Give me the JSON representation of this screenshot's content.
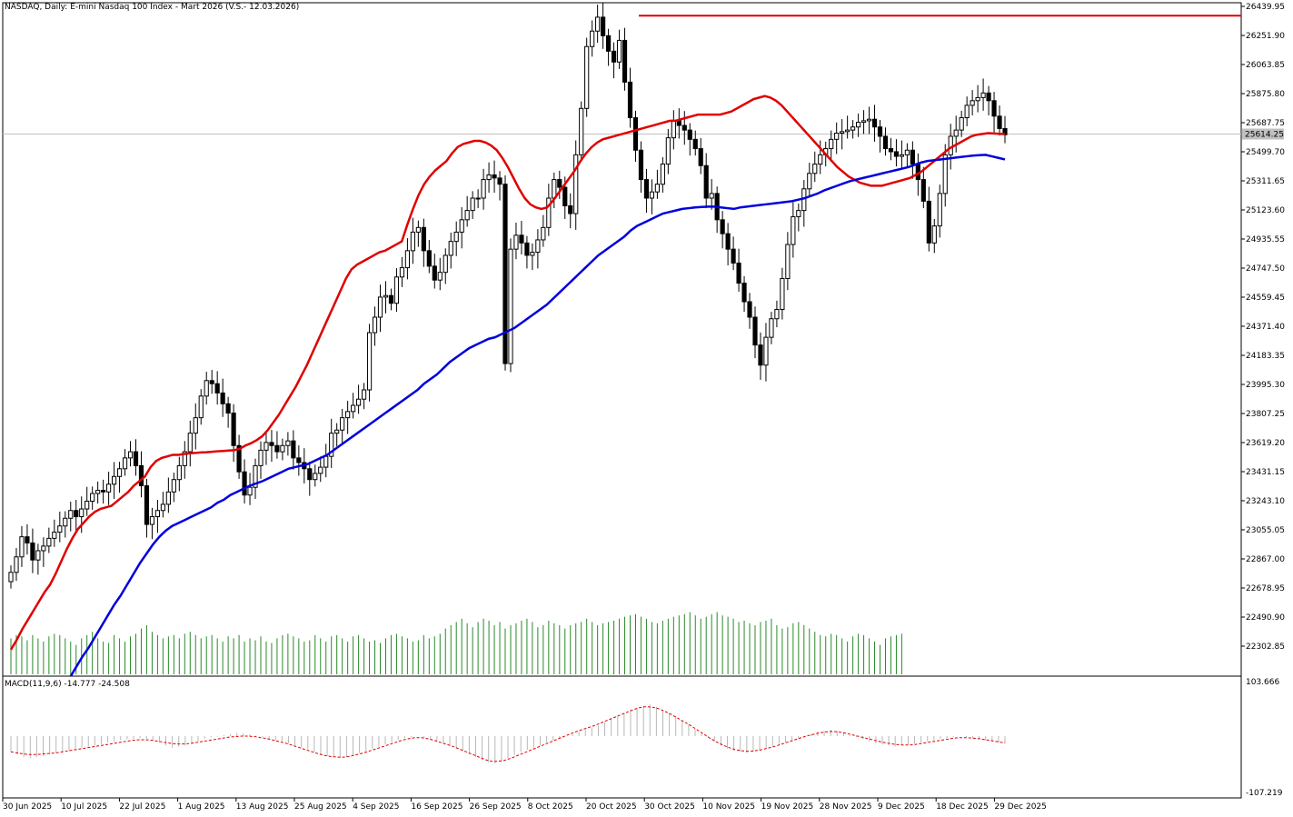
{
  "chart_data": {
    "type": "candlestick",
    "title": "NASDAQ, Daily:  E-mini Nasdaq 100 Index - Mart 2026 (V.S.- 12.03.2026)",
    "price_axis": {
      "ticks": [
        "26439.95",
        "26251.90",
        "26063.85",
        "25875.80",
        "25687.75",
        "25499.70",
        "25311.65",
        "25123.60",
        "24935.55",
        "24747.50",
        "24559.45",
        "24371.40",
        "24183.35",
        "23995.30",
        "23807.25",
        "23619.20",
        "23431.15",
        "23243.10",
        "23055.05",
        "22867.00",
        "22678.95",
        "22490.90",
        "22302.85"
      ],
      "range": [
        22302.85,
        26439.95
      ],
      "current_price": "25614.25",
      "resistance_level": 26380
    },
    "date_labels": [
      "30 Jun 2025",
      "10 Jul 2025",
      "22 Jul 2025",
      "1 Aug 2025",
      "13 Aug 2025",
      "25 Aug 2025",
      "4 Sep 2025",
      "16 Sep 2025",
      "26 Sep 2025",
      "8 Oct 2025",
      "20 Oct 2025",
      "30 Oct 2025",
      "10 Nov 2025",
      "19 Nov 2025",
      "28 Nov 2025",
      "9 Dec 2025",
      "18 Dec 2025",
      "29 Dec 2025"
    ],
    "close_series": [
      22780,
      22880,
      23010,
      22970,
      22860,
      22920,
      22950,
      23000,
      23040,
      23080,
      23130,
      23180,
      23140,
      23190,
      23240,
      23290,
      23310,
      23300,
      23350,
      23400,
      23450,
      23520,
      23560,
      23470,
      23340,
      23090,
      23140,
      23180,
      23220,
      23300,
      23380,
      23470,
      23560,
      23680,
      23780,
      23920,
      24020,
      24000,
      23940,
      23870,
      23810,
      23600,
      23430,
      23280,
      23330,
      23470,
      23570,
      23620,
      23600,
      23560,
      23600,
      23630,
      23520,
      23490,
      23450,
      23380,
      23420,
      23460,
      23530,
      23680,
      23700,
      23780,
      23820,
      23860,
      23900,
      23960,
      24330,
      24430,
      24560,
      24570,
      24520,
      24690,
      24750,
      24860,
      24980,
      25010,
      24860,
      24760,
      24670,
      24720,
      24830,
      24920,
      24980,
      25060,
      25120,
      25200,
      25200,
      25320,
      25350,
      25330,
      25290,
      24130,
      24870,
      24960,
      24910,
      24830,
      24850,
      24930,
      25010,
      25200,
      25320,
      25270,
      25150,
      25100,
      25480,
      25780,
      26180,
      26280,
      26370,
      26250,
      26150,
      26080,
      26220,
      25950,
      25720,
      25510,
      25320,
      25200,
      25240,
      25290,
      25420,
      25590,
      25700,
      25670,
      25640,
      25580,
      25520,
      25410,
      25200,
      25230,
      25060,
      24970,
      24870,
      24780,
      24650,
      24530,
      24430,
      24250,
      24120,
      24300,
      24420,
      24480,
      24680,
      24900,
      25080,
      25120,
      25260,
      25360,
      25420,
      25480,
      25520,
      25580,
      25620,
      25630,
      25640,
      25660,
      25690,
      25700,
      25710,
      25660,
      25600,
      25520,
      25500,
      25470,
      25480,
      25510,
      25420,
      25320,
      25180,
      24910,
      25020,
      25230,
      25480,
      25600,
      25640,
      25720,
      25800,
      25830,
      25850,
      25880,
      25830,
      25730,
      25650,
      25610
    ],
    "ma_red_series": [
      22280,
      22340,
      22410,
      22470,
      22530,
      22590,
      22650,
      22700,
      22770,
      22850,
      22930,
      23000,
      23060,
      23100,
      23140,
      23170,
      23190,
      23200,
      23210,
      23240,
      23270,
      23300,
      23340,
      23370,
      23400,
      23460,
      23500,
      23520,
      23530,
      23540,
      23540,
      23545,
      23550,
      23552,
      23555,
      23557,
      23560,
      23563,
      23565,
      23568,
      23570,
      23580,
      23600,
      23615,
      23635,
      23660,
      23700,
      23750,
      23800,
      23860,
      23920,
      23980,
      24050,
      24120,
      24200,
      24280,
      24360,
      24440,
      24520,
      24600,
      24680,
      24740,
      24770,
      24790,
      24810,
      24830,
      24850,
      24860,
      24880,
      24900,
      24920,
      25030,
      25130,
      25220,
      25290,
      25340,
      25380,
      25410,
      25440,
      25490,
      25530,
      25550,
      25560,
      25570,
      25570,
      25560,
      25540,
      25510,
      25460,
      25400,
      25330,
      25260,
      25200,
      25160,
      25140,
      25130,
      25140,
      25180,
      25230,
      25280,
      25330,
      25380,
      25440,
      25490,
      25530,
      25560,
      25580,
      25590,
      25600,
      25610,
      25620,
      25630,
      25640,
      25650,
      25660,
      25670,
      25680,
      25690,
      25700,
      25700,
      25710,
      25720,
      25730,
      25740,
      25740,
      25740,
      25740,
      25740,
      25750,
      25760,
      25780,
      25800,
      25820,
      25840,
      25850,
      25860,
      25850,
      25830,
      25800,
      25760,
      25720,
      25680,
      25640,
      25600,
      25560,
      25520,
      25480,
      25440,
      25400,
      25370,
      25340,
      25320,
      25300,
      25290,
      25280,
      25280,
      25280,
      25290,
      25300,
      25310,
      25320,
      25330,
      25350,
      25370,
      25400,
      25430,
      25460,
      25490,
      25520,
      25540,
      25560,
      25580,
      25600,
      25610,
      25615,
      25620,
      25618,
      25616,
      25614
    ],
    "ma_blue_series": [
      21500,
      21560,
      21620,
      21690,
      21760,
      21830,
      21890,
      21960,
      22020,
      22090,
      22160,
      22230,
      22290,
      22360,
      22430,
      22500,
      22570,
      22630,
      22700,
      22770,
      22840,
      22900,
      22960,
      23010,
      23050,
      23080,
      23100,
      23120,
      23140,
      23160,
      23180,
      23200,
      23230,
      23250,
      23280,
      23300,
      23320,
      23340,
      23355,
      23370,
      23390,
      23410,
      23430,
      23450,
      23460,
      23470,
      23480,
      23500,
      23520,
      23540,
      23570,
      23600,
      23630,
      23660,
      23690,
      23720,
      23750,
      23780,
      23810,
      23840,
      23870,
      23900,
      23930,
      23960,
      24000,
      24030,
      24060,
      24100,
      24140,
      24170,
      24200,
      24230,
      24250,
      24270,
      24290,
      24300,
      24320,
      24340,
      24360,
      24390,
      24420,
      24450,
      24480,
      24510,
      24550,
      24590,
      24630,
      24670,
      24710,
      24750,
      24790,
      24830,
      24860,
      24890,
      24920,
      24950,
      24990,
      25020,
      25040,
      25060,
      25080,
      25100,
      25110,
      25120,
      25130,
      25135,
      25140,
      25143,
      25145,
      25145,
      25140,
      25135,
      25130,
      25140,
      25145,
      25150,
      25155,
      25160,
      25165,
      25170,
      25175,
      25180,
      25190,
      25200,
      25215,
      25230,
      25250,
      25265,
      25280,
      25295,
      25310,
      25320,
      25330,
      25340,
      25350,
      25360,
      25370,
      25380,
      25390,
      25400,
      25415,
      25430,
      25440,
      25445,
      25450,
      25455,
      25460,
      25465,
      25470,
      25475,
      25478,
      25480,
      25470,
      25460,
      25450
    ],
    "volume_series": [
      0.55,
      0.6,
      0.58,
      0.52,
      0.6,
      0.55,
      0.5,
      0.58,
      0.62,
      0.6,
      0.55,
      0.5,
      0.45,
      0.55,
      0.6,
      0.65,
      0.55,
      0.5,
      0.48,
      0.6,
      0.55,
      0.5,
      0.58,
      0.62,
      0.7,
      0.75,
      0.65,
      0.6,
      0.55,
      0.58,
      0.6,
      0.55,
      0.62,
      0.65,
      0.6,
      0.55,
      0.58,
      0.6,
      0.55,
      0.5,
      0.58,
      0.55,
      0.6,
      0.5,
      0.55,
      0.52,
      0.58,
      0.5,
      0.48,
      0.55,
      0.6,
      0.62,
      0.58,
      0.55,
      0.5,
      0.52,
      0.6,
      0.55,
      0.5,
      0.58,
      0.6,
      0.55,
      0.5,
      0.58,
      0.6,
      0.55,
      0.5,
      0.52,
      0.48,
      0.55,
      0.6,
      0.62,
      0.58,
      0.55,
      0.5,
      0.52,
      0.6,
      0.55,
      0.58,
      0.62,
      0.7,
      0.75,
      0.8,
      0.85,
      0.78,
      0.72,
      0.8,
      0.85,
      0.82,
      0.75,
      0.8,
      0.7,
      0.75,
      0.78,
      0.82,
      0.85,
      0.8,
      0.72,
      0.75,
      0.82,
      0.78,
      0.75,
      0.7,
      0.75,
      0.78,
      0.8,
      0.85,
      0.8,
      0.75,
      0.78,
      0.8,
      0.82,
      0.85,
      0.88,
      0.9,
      0.92,
      0.88,
      0.85,
      0.8,
      0.78,
      0.82,
      0.85,
      0.88,
      0.9,
      0.92,
      0.95,
      0.9,
      0.85,
      0.88,
      0.92,
      0.95,
      0.9,
      0.88,
      0.85,
      0.8,
      0.82,
      0.78,
      0.75,
      0.8,
      0.82,
      0.85,
      0.75,
      0.7,
      0.72,
      0.78,
      0.8,
      0.75,
      0.7,
      0.65,
      0.6,
      0.58,
      0.62,
      0.6,
      0.55,
      0.5,
      0.58,
      0.62,
      0.6,
      0.55,
      0.5,
      0.45,
      0.55,
      0.58,
      0.6,
      0.62
    ],
    "macd": {
      "label": "MACD(11,9,6) -14.777 -24.508",
      "ticks": [
        "103.666",
        "-107.219"
      ],
      "range": [
        -107.219,
        103.666
      ],
      "histogram": [
        -30,
        -35,
        -40,
        -42,
        -40,
        -38,
        -35,
        -32,
        -30,
        -28,
        -26,
        -22,
        -20,
        -18,
        -15,
        -12,
        -10,
        -8,
        -6,
        -5,
        -4,
        -5,
        -8,
        -12,
        -18,
        -22,
        -20,
        -18,
        -15,
        -10,
        -5,
        -2,
        -1,
        2,
        4,
        6,
        5,
        3,
        1,
        -2,
        -5,
        -8,
        -10,
        -14,
        -18,
        -22,
        -25,
        -30,
        -34,
        -38,
        -40,
        -42,
        -40,
        -36,
        -32,
        -28,
        -24,
        -20,
        -16,
        -12,
        -8,
        -4,
        -2,
        0,
        -3,
        -6,
        -10,
        -14,
        -18,
        -22,
        -28,
        -34,
        -40,
        -46,
        -50,
        -52,
        -48,
        -42,
        -36,
        -30,
        -26,
        -22,
        -18,
        -12,
        -8,
        -4,
        0,
        4,
        8,
        12,
        16,
        20,
        26,
        32,
        38,
        44,
        50,
        54,
        58,
        60,
        56,
        50,
        44,
        38,
        30,
        22,
        14,
        6,
        -2,
        -10,
        -18,
        -24,
        -28,
        -30,
        -32,
        -30,
        -28,
        -24,
        -20,
        -16,
        -12,
        -8,
        -4,
        0,
        4,
        8,
        10,
        12,
        10,
        6,
        2,
        -2,
        -6,
        -10,
        -14,
        -16,
        -18,
        -20,
        -18,
        -16,
        -14,
        -12,
        -10,
        -8,
        -6,
        -4,
        -2,
        0,
        -2,
        -4,
        -6,
        -8,
        -10,
        -12,
        -14
      ],
      "signal": [
        -30,
        -32,
        -34,
        -35,
        -35,
        -34,
        -33,
        -32,
        -30,
        -28,
        -26,
        -24,
        -22,
        -20,
        -18,
        -16,
        -14,
        -12,
        -10,
        -8,
        -7,
        -7,
        -8,
        -10,
        -12,
        -14,
        -15,
        -15,
        -14,
        -12,
        -10,
        -8,
        -6,
        -4,
        -2,
        -1,
        0,
        0,
        -1,
        -3,
        -5,
        -8,
        -11,
        -14,
        -18,
        -22,
        -26,
        -30,
        -34,
        -37,
        -39,
        -40,
        -40,
        -38,
        -35,
        -32,
        -28,
        -24,
        -20,
        -16,
        -12,
        -8,
        -5,
        -3,
        -3,
        -5,
        -8,
        -12,
        -16,
        -20,
        -25,
        -30,
        -35,
        -40,
        -45,
        -48,
        -48,
        -46,
        -42,
        -37,
        -32,
        -27,
        -22,
        -17,
        -12,
        -7,
        -2,
        3,
        8,
        12,
        16,
        20,
        25,
        30,
        35,
        40,
        45,
        50,
        54,
        56,
        55,
        52,
        47,
        41,
        34,
        27,
        20,
        12,
        4,
        -4,
        -11,
        -17,
        -22,
        -26,
        -28,
        -29,
        -28,
        -26,
        -23,
        -20,
        -16,
        -12,
        -8,
        -4,
        0,
        3,
        6,
        8,
        9,
        8,
        6,
        3,
        0,
        -3,
        -6,
        -9,
        -12,
        -14,
        -16,
        -17,
        -17,
        -16,
        -14,
        -12,
        -10,
        -8,
        -6,
        -4,
        -3,
        -3,
        -4,
        -5,
        -7,
        -9,
        -11,
        -13
      ]
    }
  }
}
